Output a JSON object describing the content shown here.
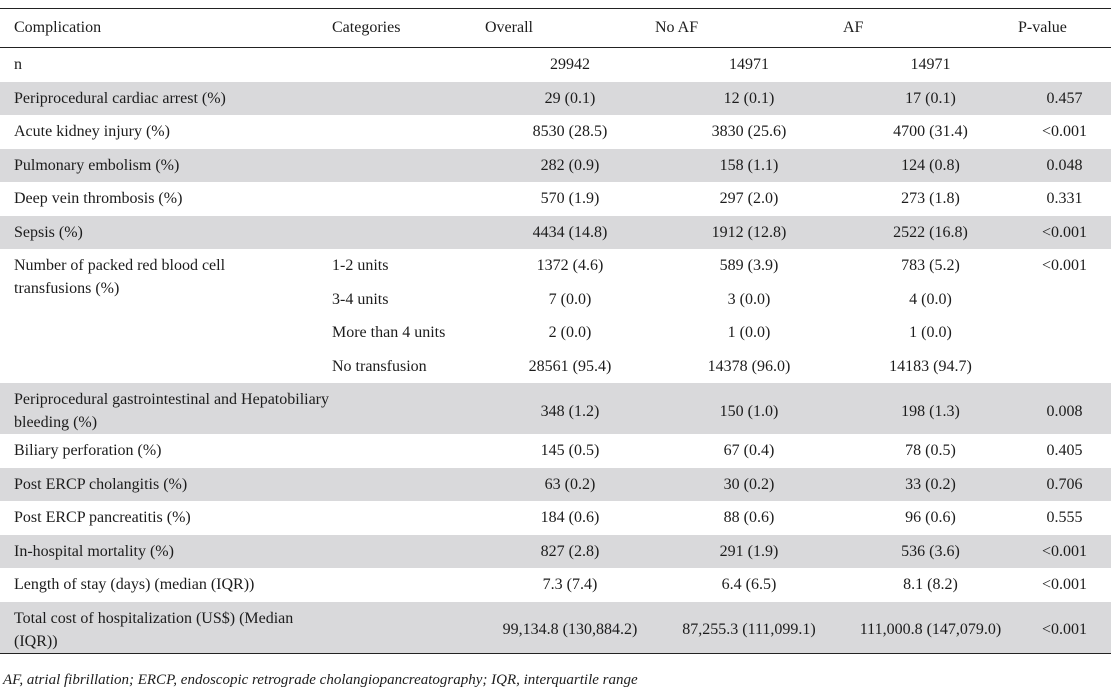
{
  "columns": [
    "Complication",
    "Categories",
    "Overall",
    "No AF",
    "AF",
    "P-value"
  ],
  "rows": [
    {
      "complication": "n",
      "categories": "",
      "overall": "29942",
      "noaf": "14971",
      "af": "14971",
      "p": "",
      "shade": false
    },
    {
      "complication": "Periprocedural cardiac arrest (%)",
      "categories": "",
      "overall": "29 (0.1)",
      "noaf": "12 (0.1)",
      "af": "17 (0.1)",
      "p": "0.457",
      "shade": true
    },
    {
      "complication": "Acute kidney injury (%)",
      "categories": "",
      "overall": "8530 (28.5)",
      "noaf": "3830 (25.6)",
      "af": "4700 (31.4)",
      "p": "<0.001",
      "shade": false
    },
    {
      "complication": "Pulmonary embolism (%)",
      "categories": "",
      "overall": "282 (0.9)",
      "noaf": "158 (1.1)",
      "af": "124 (0.8)",
      "p": "0.048",
      "shade": true
    },
    {
      "complication": "Deep vein thrombosis (%)",
      "categories": "",
      "overall": "570 (1.9)",
      "noaf": "297 (2.0)",
      "af": "273 (1.8)",
      "p": "0.331",
      "shade": false
    },
    {
      "complication": "Sepsis (%)",
      "categories": "",
      "overall": "4434 (14.8)",
      "noaf": "1912 (12.8)",
      "af": "2522 (16.8)",
      "p": "<0.001",
      "shade": true
    }
  ],
  "transfusion": {
    "complication": "Number of packed red blood cell transfusions (%)",
    "p": "<0.001",
    "subrows": [
      {
        "categories": "1-2 units",
        "overall": "1372 (4.6)",
        "noaf": "589 (3.9)",
        "af": "783 (5.2)"
      },
      {
        "categories": "3-4 units",
        "overall": "7 (0.0)",
        "noaf": "3 (0.0)",
        "af": "4 (0.0)"
      },
      {
        "categories": "More than 4 units",
        "overall": "2 (0.0)",
        "noaf": "1 (0.0)",
        "af": "1 (0.0)"
      },
      {
        "categories": "No transfusion",
        "overall": "28561 (95.4)",
        "noaf": "14378 (96.0)",
        "af": "14183 (94.7)"
      }
    ]
  },
  "rows2": [
    {
      "complication": "Periprocedural gastrointestinal and Hepatobiliary bleeding (%)",
      "categories": "",
      "overall": "348 (1.2)",
      "noaf": "150 (1.0)",
      "af": "198 (1.3)",
      "p": "0.008",
      "shade": true,
      "multi": true
    },
    {
      "complication": "Biliary perforation (%)",
      "categories": "",
      "overall": "145 (0.5)",
      "noaf": "67 (0.4)",
      "af": "78 (0.5)",
      "p": "0.405",
      "shade": false
    },
    {
      "complication": "Post ERCP cholangitis (%)",
      "categories": "",
      "overall": "63 (0.2)",
      "noaf": "30 (0.2)",
      "af": "33 (0.2)",
      "p": "0.706",
      "shade": true
    },
    {
      "complication": "Post ERCP pancreatitis (%)",
      "categories": "",
      "overall": "184 (0.6)",
      "noaf": "88 (0.6)",
      "af": "96 (0.6)",
      "p": "0.555",
      "shade": false
    },
    {
      "complication": "In-hospital mortality (%)",
      "categories": "",
      "overall": "827 (2.8)",
      "noaf": "291 (1.9)",
      "af": "536 (3.6)",
      "p": "<0.001",
      "shade": true
    },
    {
      "complication": "Length of stay (days) (median (IQR))",
      "categories": "",
      "overall": "7.3 (7.4)",
      "noaf": "6.4 (6.5)",
      "af": "8.1 (8.2)",
      "p": "<0.001",
      "shade": false
    },
    {
      "complication": "Total cost of hospitalization (US$) (Median (IQR))",
      "categories": "",
      "overall": "99,134.8 (130,884.2)",
      "noaf": "87,255.3 (111,099.1)",
      "af": "111,000.8 (147,079.0)",
      "p": "<0.001",
      "shade": true,
      "multi": true
    }
  ],
  "footnote": "AF, atrial fibrillation; ERCP, endoscopic retrograde cholangiopancreatography; IQR, interquartile range"
}
